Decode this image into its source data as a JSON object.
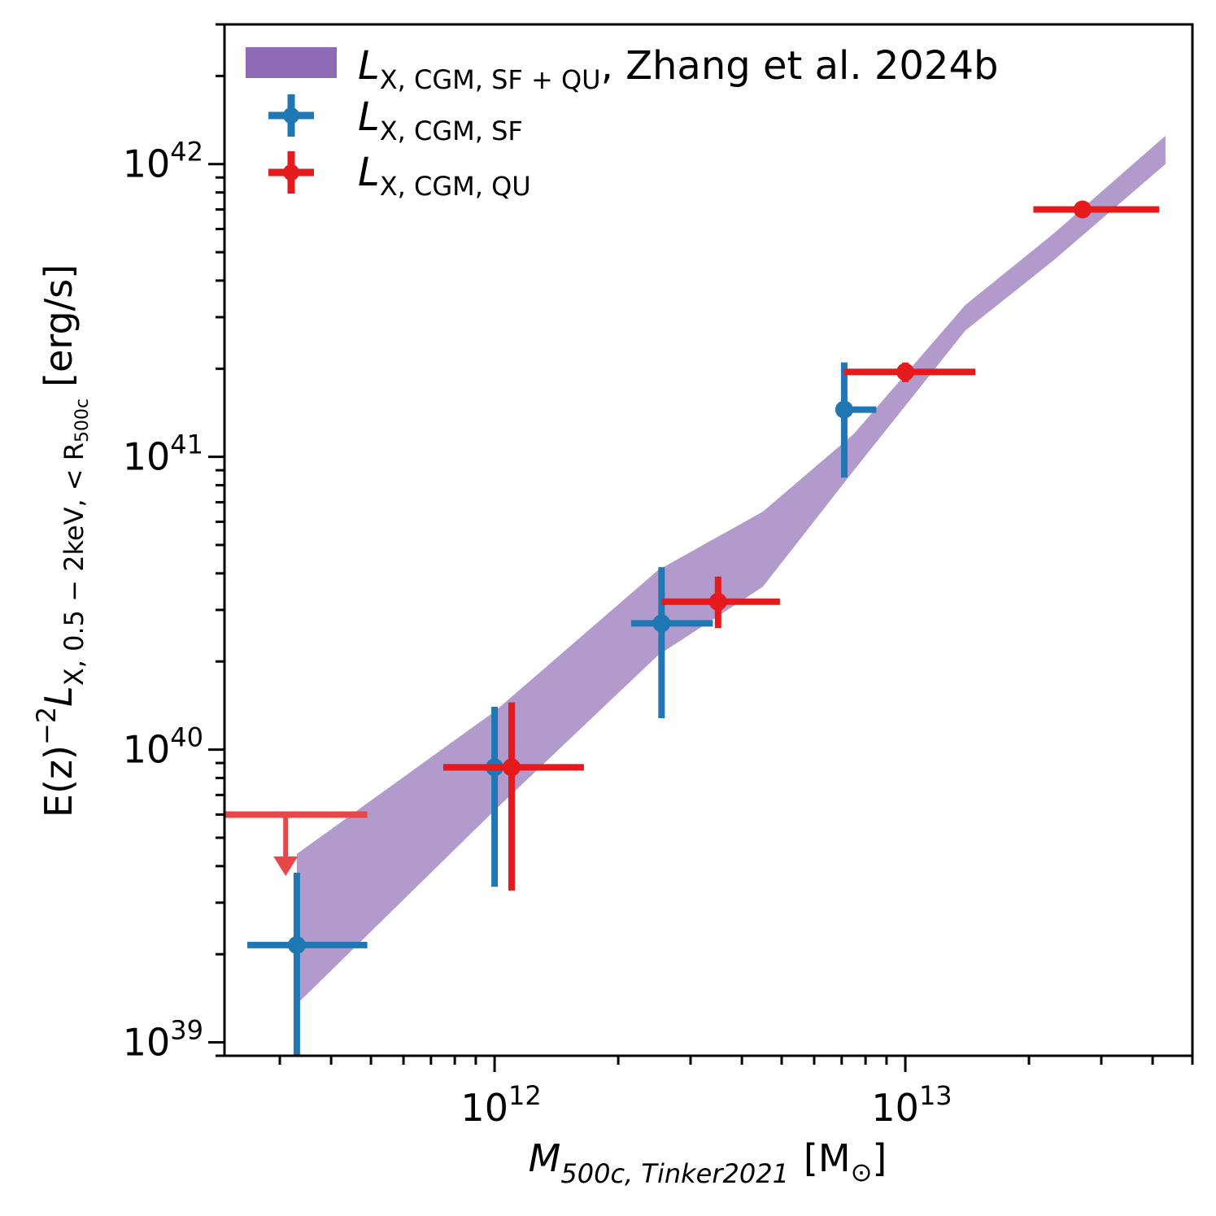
{
  "chart_data": {
    "type": "scatter",
    "xscale": "log",
    "yscale": "log",
    "xlim": [
      220000000000,
      50000000000000
    ],
    "ylim": [
      900000000000000000000000000000000000000,
      3000000000000000000000000000000000000000000
    ],
    "xlabel": {
      "main": "M",
      "sub": "500c, Tinker2021",
      "unit_open": "[M",
      "unit_sub": "⊙",
      "unit_close": "]"
    },
    "ylabel": {
      "prefix": "E(z)",
      "exp": "−2",
      "main": "L",
      "sub": "X, 0.5 − 2keV, < R",
      "subsub": "500c",
      "unit": "[erg/s]"
    },
    "x_ticks": [
      {
        "value": 1000000000000,
        "base": "10",
        "exp": "12"
      },
      {
        "value": 10000000000000,
        "base": "10",
        "exp": "13"
      }
    ],
    "y_ticks": [
      {
        "value": 1e+39,
        "base": "10",
        "exp": "39"
      },
      {
        "value": 1e+40,
        "base": "10",
        "exp": "40"
      },
      {
        "value": 1e+41,
        "base": "10",
        "exp": "41"
      },
      {
        "value": 1e+42,
        "base": "10",
        "exp": "42"
      }
    ],
    "band": {
      "name": "L_X,CGM,SF+QU, Zhang et al. 2024b",
      "color": "#8e6bb4",
      "x": [
        330000000000,
        1000000000000,
        2500000000000,
        4500000000000,
        7500000000000,
        14000000000000,
        23000000000000,
        43000000000000
      ],
      "lower": [
        1.35e+39,
        6.2e+39,
        2.1e+40,
        3.6e+40,
        9e+40,
        2.7e+41,
        4.7e+41,
        1e+42
      ],
      "upper": [
        4.4e+39,
        1.35e+40,
        4.1e+40,
        6.5e+40,
        1.2e+41,
        3.3e+41,
        5.8e+41,
        1.25e+42
      ]
    },
    "series": [
      {
        "name": "L_X,CGM,SF",
        "color": "#1f77b4",
        "points": [
          {
            "x": 330000000000,
            "xlo": 250000000000,
            "xhi": 490000000000,
            "y": 2.15e+39,
            "ylo": 8.9e+38,
            "yhi": 3.8e+39
          },
          {
            "x": 1000000000000,
            "xlo": 750000000000,
            "xhi": 1080000000000,
            "y": 8.7e+39,
            "ylo": 3.4e+39,
            "yhi": 1.4e+40
          },
          {
            "x": 2550000000000,
            "xlo": 2150000000000,
            "xhi": 3400000000000,
            "y": 2.7e+40,
            "ylo": 1.28e+40,
            "yhi": 4.2e+40
          },
          {
            "x": 7100000000000,
            "xlo": 6900000000000,
            "xhi": 8500000000000,
            "y": 1.45e+41,
            "ylo": 8.5e+40,
            "yhi": 2.1e+41
          }
        ]
      },
      {
        "name": "L_X,CGM,QU",
        "color": "#e41a1c",
        "points": [
          {
            "x": 1100000000000,
            "xlo": 750000000000,
            "xhi": 1650000000000,
            "y": 8.7e+39,
            "ylo": 3.3e+39,
            "yhi": 1.45e+40
          },
          {
            "x": 3500000000000,
            "xlo": 2550000000000,
            "xhi": 4950000000000,
            "y": 3.2e+40,
            "ylo": 2.6e+40,
            "yhi": 3.9e+40
          },
          {
            "x": 10000000000000,
            "xlo": 7100000000000,
            "xhi": 14800000000000,
            "y": 1.95e+41,
            "ylo": 1.8e+41,
            "yhi": 2.1e+41
          },
          {
            "x": 27000000000000,
            "xlo": 20500000000000,
            "xhi": 41500000000000,
            "y": 7e+41,
            "ylo": 6.6e+41,
            "yhi": 7.4e+41
          }
        ]
      }
    ],
    "upper_limit": {
      "name": "QU upper limit",
      "color": "#e8474a",
      "x": 310000000000,
      "xlo": 220000000000,
      "xhi": 490000000000,
      "y": 6e+39,
      "arrow_to": 3.7e+39
    },
    "legend": {
      "position": "top-left",
      "entries": [
        {
          "kind": "band",
          "main": "L",
          "sub": "X, CGM, SF + QU",
          "tail": ", Zhang et al. 2024b"
        },
        {
          "kind": "sf",
          "main": "L",
          "sub": "X, CGM, SF",
          "tail": ""
        },
        {
          "kind": "qu",
          "main": "L",
          "sub": "X, CGM, QU",
          "tail": ""
        }
      ]
    }
  }
}
